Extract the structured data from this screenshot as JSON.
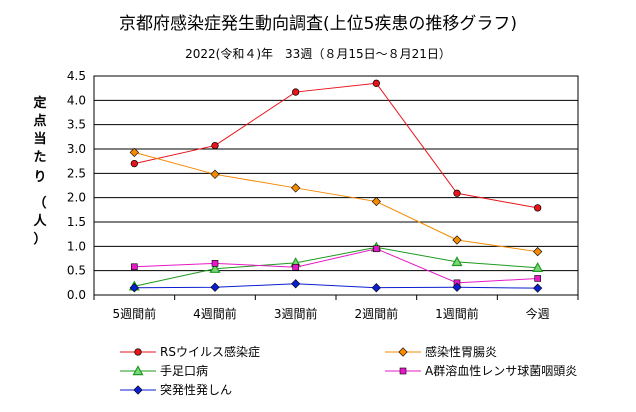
{
  "chart_data": {
    "type": "line",
    "title": "京都府感染症発生動向調査(上位5疾患の推移グラフ)",
    "subtitle": "2022(令和４)年　33週（８月15日～８月21日）",
    "ylabel_chars": [
      "定",
      "点",
      "当",
      "た",
      "り",
      "（",
      "人",
      "）"
    ],
    "categories": [
      "5週間前",
      "4週間前",
      "3週間前",
      "2週間前",
      "1週間前",
      "今週"
    ],
    "yticks": [
      "0.0",
      "0.5",
      "1.0",
      "1.5",
      "2.0",
      "2.5",
      "3.0",
      "3.5",
      "4.0",
      "4.5"
    ],
    "ylim": [
      0,
      4.5
    ],
    "grid": true,
    "legend": "bottom",
    "series": [
      {
        "name": "RSウイルス感染症",
        "color": "#e8131b",
        "marker": "circle",
        "values": [
          2.7,
          3.07,
          4.17,
          4.35,
          2.09,
          1.79
        ]
      },
      {
        "name": "感染性胃腸炎",
        "color": "#f58a00",
        "marker": "diamond",
        "values": [
          2.93,
          2.48,
          2.2,
          1.92,
          1.13,
          0.89
        ]
      },
      {
        "name": "手足口病",
        "color": "#1e9a1e",
        "marker": "triangle",
        "values": [
          0.18,
          0.54,
          0.66,
          0.98,
          0.68,
          0.56
        ]
      },
      {
        "name": "A群溶血性レンサ球菌咽頭炎",
        "color": "#e619c8",
        "marker": "square",
        "values": [
          0.58,
          0.65,
          0.57,
          0.95,
          0.25,
          0.34
        ]
      },
      {
        "name": "突発性発しん",
        "color": "#0b1fd0",
        "marker": "diamond",
        "values": [
          0.15,
          0.16,
          0.23,
          0.15,
          0.16,
          0.14
        ]
      }
    ]
  }
}
